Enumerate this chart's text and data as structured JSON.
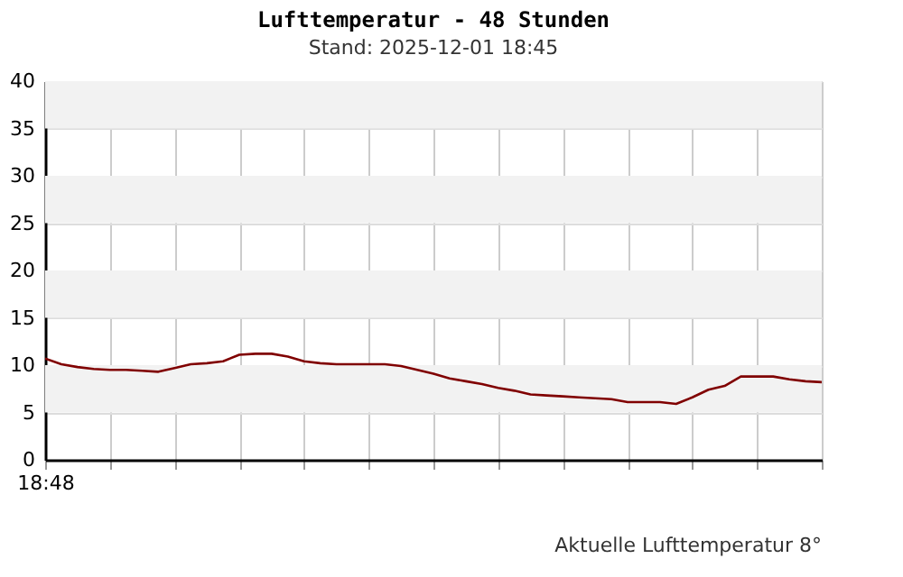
{
  "chart_data": {
    "type": "line",
    "title": "Lufttemperatur - 48 Stunden",
    "subtitle": "Stand: 2025-12-01 18:45",
    "annotations": [
      "Aktuelle Lufttemperatur 8°"
    ],
    "categories": [
      "18:48",
      null,
      null,
      null,
      null,
      null,
      null,
      null,
      null,
      null,
      null,
      null,
      null,
      null,
      null,
      null,
      null,
      null,
      null,
      null,
      null,
      null,
      null,
      null,
      null,
      null,
      null,
      null,
      null,
      null,
      null,
      null,
      null,
      null,
      null,
      null,
      null,
      null,
      null,
      null,
      null,
      null,
      null,
      null,
      null,
      null,
      null,
      null,
      null
    ],
    "series": [
      {
        "color": "#800000",
        "values": [
          10.7,
          10.1,
          9.8,
          9.6,
          9.5,
          9.5,
          9.4,
          9.3,
          9.7,
          10.1,
          10.2,
          10.4,
          11.1,
          11.2,
          11.2,
          10.9,
          10.4,
          10.2,
          10.1,
          10.1,
          10.1,
          10.1,
          9.9,
          9.5,
          9.1,
          8.6,
          8.3,
          8.0,
          7.6,
          7.3,
          6.9,
          6.8,
          6.7,
          6.6,
          6.5,
          6.4,
          6.1,
          6.1,
          6.1,
          5.9,
          6.6,
          7.4,
          7.8,
          8.8,
          8.8,
          8.8,
          8.5,
          8.3,
          8.2
        ]
      }
    ],
    "ylim": [
      0,
      40
    ],
    "yticks": [
      0,
      5,
      10,
      15,
      20,
      25,
      30,
      35,
      40
    ],
    "bands": [
      {
        "axis": "y",
        "from": 5,
        "to": 10,
        "color": "#f2f2f2"
      },
      {
        "axis": "y",
        "from": 15,
        "to": 20,
        "color": "#f2f2f2"
      },
      {
        "axis": "y",
        "from": 25,
        "to": 30,
        "color": "#f2f2f2"
      },
      {
        "axis": "y",
        "from": 35,
        "to": 40,
        "color": "#f2f2f2"
      }
    ],
    "grid": true,
    "legend": false,
    "line_style": "solid"
  }
}
